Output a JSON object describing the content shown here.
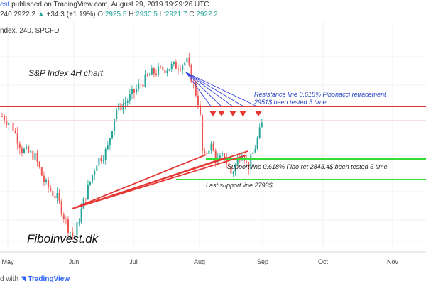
{
  "header": {
    "publisher_fragment": "est",
    "published_text": "published on TradingView.com, August 29, 2019 19:29:26 UTC",
    "symbol_fragment": "240",
    "last_price": "2922.2",
    "change": "+34.3 (+1.19%)",
    "ohlc": [
      {
        "label": "O:",
        "value": "2925.5"
      },
      {
        "label": "H:",
        "value": "2930.5"
      },
      {
        "label": "L:",
        "value": "2921.7"
      },
      {
        "label": "C:",
        "value": "2922.2"
      }
    ],
    "instrument_line": "ndex, 240, SPCFD"
  },
  "footer": {
    "prefix": "d with",
    "brand": "TradingView"
  },
  "colors": {
    "up": "#26a69a",
    "down": "#ef5350",
    "resistance": "#e53935",
    "support": "#33dd33",
    "fan": "#3344dd",
    "marker": "#e53935"
  },
  "chart_data": {
    "type": "candlestick",
    "title": "S&P Index  4H chart",
    "watermark": "Fiboinvest.dk",
    "xaxis_labels": [
      "May",
      "Jun",
      "Jul",
      "Aug",
      "Sep",
      "Oct",
      "Nov"
    ],
    "approx_path": [
      {
        "x": "May",
        "y": 2945
      },
      {
        "x": "mid-May",
        "y": 2860
      },
      {
        "x": "Jun",
        "y": 2730
      },
      {
        "x": "mid-Jun",
        "y": 2890
      },
      {
        "x": "Jul",
        "y": 2975
      },
      {
        "x": "late Jul",
        "y": 3025
      },
      {
        "x": "Aug",
        "y": 2870
      },
      {
        "x": "late Aug",
        "y": 2830
      },
      {
        "x": "Aug 29",
        "y": 2922
      }
    ],
    "lines": [
      {
        "name": "Resistance",
        "value": 2951
      },
      {
        "name": "Support",
        "value": 2843.4
      },
      {
        "name": "Last support",
        "value": 2793
      }
    ],
    "annotations": [
      "Resistance line 0.618% Fibonacci retracement",
      "2951$ been tested 5 time",
      "Support line 0.618% Fibo ret 2843.4$ been tested 3 time",
      "Last support line 2793$"
    ]
  }
}
